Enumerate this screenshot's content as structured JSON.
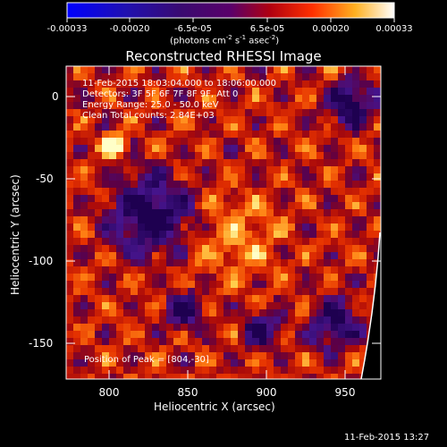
{
  "colorbar": {
    "tick_labels": [
      "-0.00033",
      "-0.00020",
      "-6.5e-05",
      "6.5e-05",
      "0.00020",
      "0.00033"
    ],
    "units_base": "(photons cm",
    "units_exp1": "-2",
    "units_mid": " s",
    "units_exp2": "-1",
    "units_mid2": " asec",
    "units_exp3": "-2",
    "units_end": ")",
    "range": [
      -0.00033,
      0.00033
    ]
  },
  "plot": {
    "title": "Reconstructed RHESSI Image",
    "info_lines": [
      "11-Feb-2015 18:03:04.000 to 18:06:00.000",
      "Detectors: 3F 5F 6F 7F 8F 9F, Att 0",
      "Energy Range: 25.0 - 50.0 keV",
      "Clean     Total counts: 2.84E+03"
    ],
    "peak_label": "Position of Peak = [804,-30]",
    "x_axis_title": "Heliocentric X (arcsec)",
    "y_axis_title": "Heliocentric Y (arcsec)",
    "x_ticks": [
      "800",
      "850",
      "900",
      "950"
    ],
    "y_ticks": [
      "0",
      "-50",
      "-100",
      "-150"
    ],
    "x_range": [
      775,
      968
    ],
    "y_range": [
      -172,
      18
    ],
    "colors": {
      "low": "#2a0060",
      "mid": "#cc1010",
      "high": "#ffe080",
      "limb": "#ffffff"
    }
  },
  "footer": {
    "timestamp": "11-Feb-2015 13:27"
  }
}
